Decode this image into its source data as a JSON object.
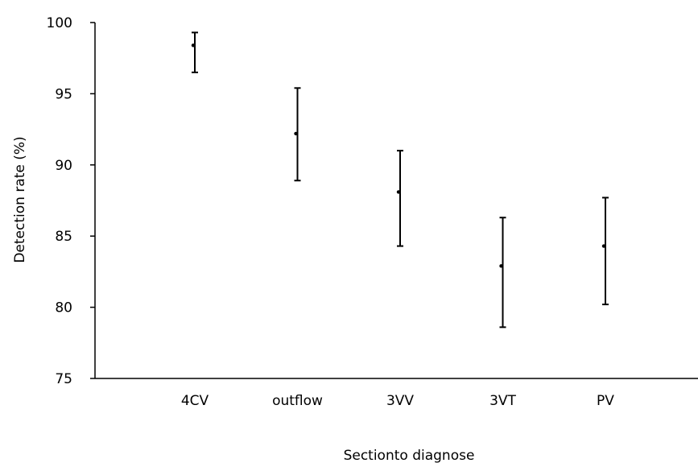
{
  "chart_data": {
    "type": "scatter",
    "title": "",
    "xlabel": "Sectionto diagnose",
    "ylabel": "Detection rate (%)",
    "categories": [
      "4CV",
      "outflow",
      "3VV",
      "3VT",
      "PV"
    ],
    "series": [
      {
        "values": [
          98.4,
          92.2,
          88.1,
          82.9,
          84.3
        ],
        "error_low": [
          96.5,
          88.9,
          84.3,
          78.6,
          80.2
        ],
        "error_high": [
          99.3,
          95.4,
          91.0,
          86.3,
          87.7
        ]
      }
    ],
    "ylim": [
      75,
      100
    ],
    "yticks": [
      75,
      80,
      85,
      90,
      95,
      100
    ],
    "grid": false,
    "legend": "none"
  }
}
